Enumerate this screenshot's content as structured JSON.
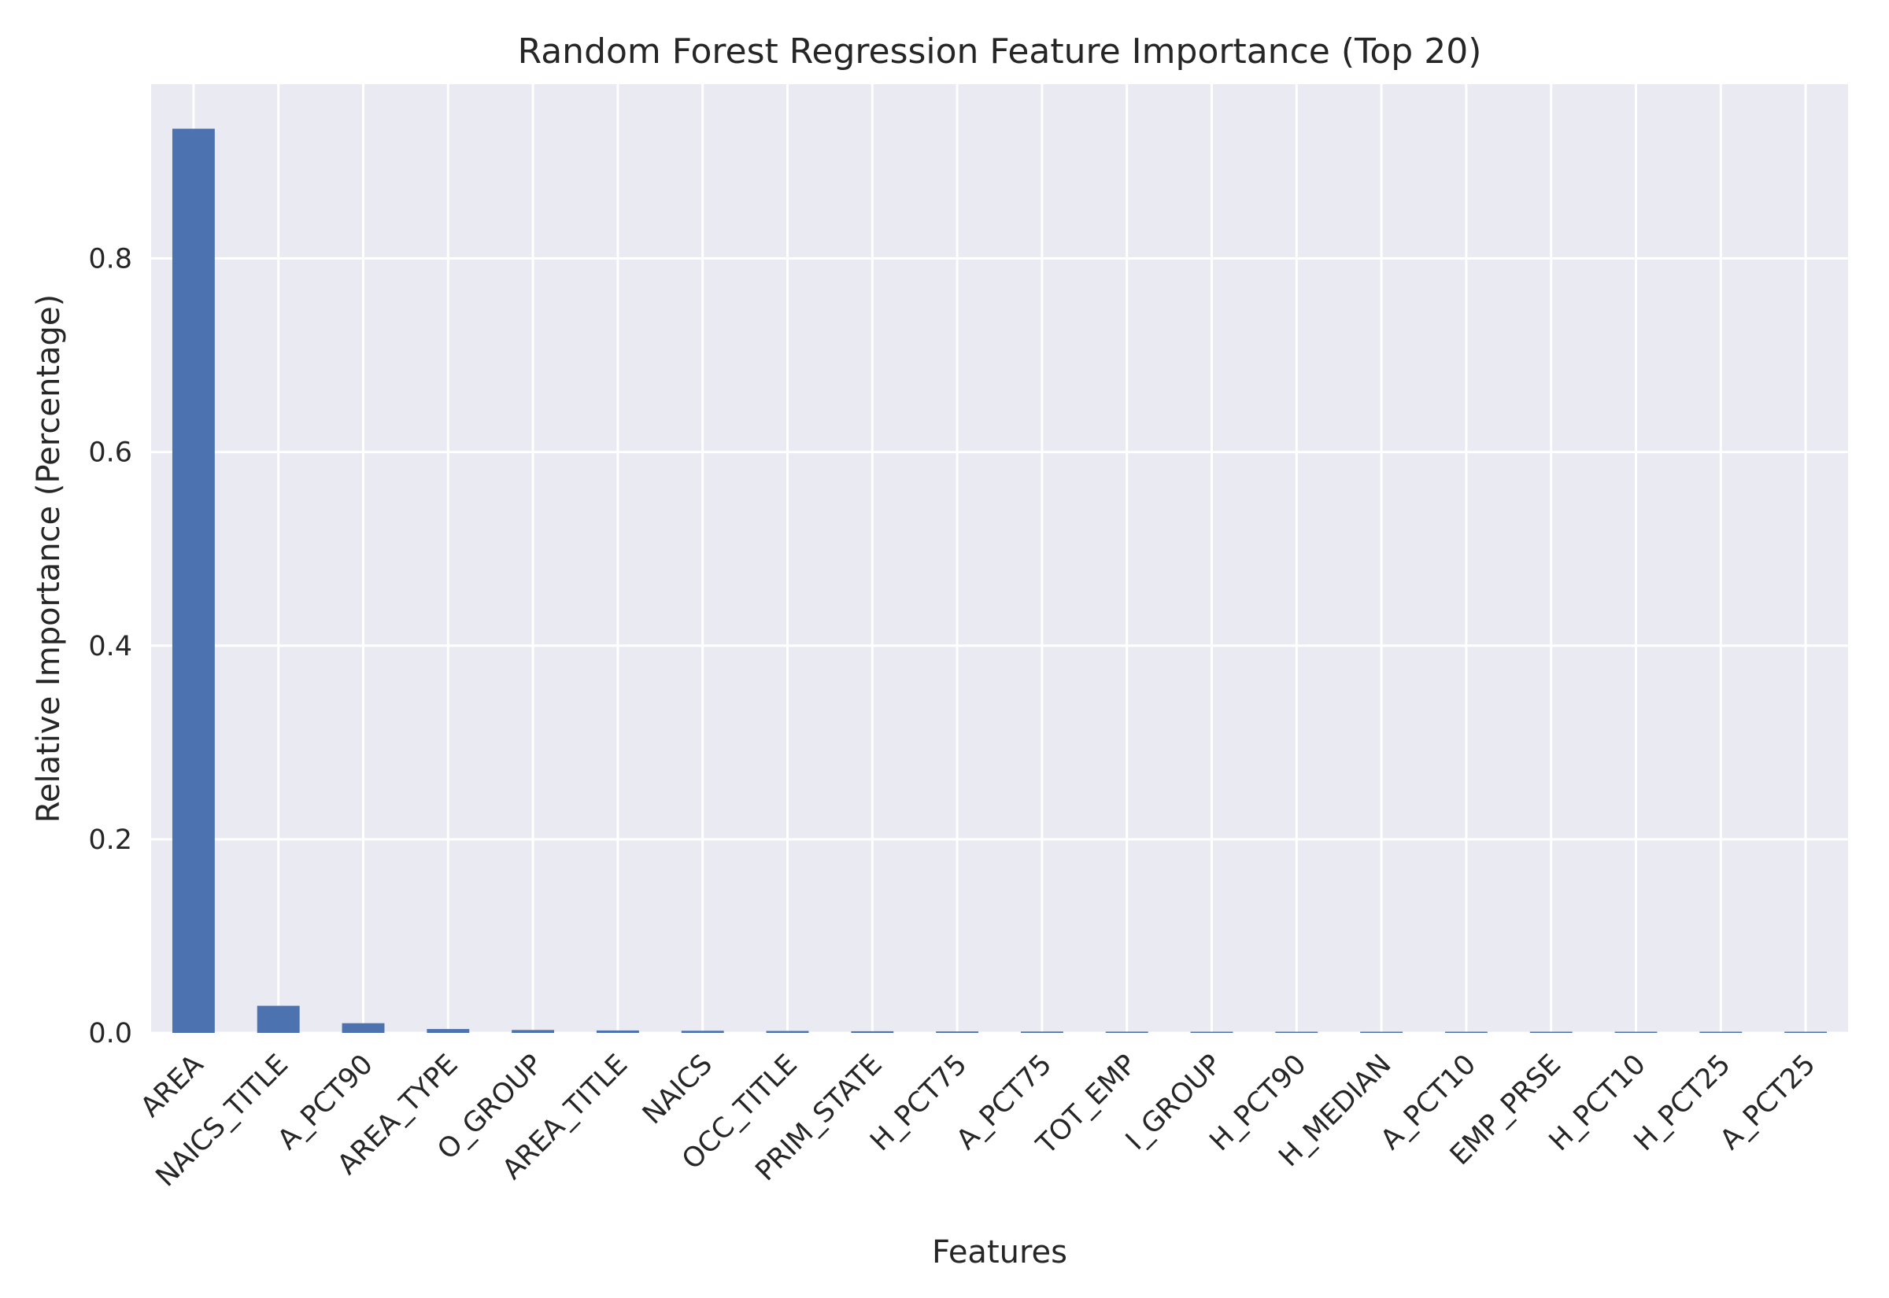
{
  "chart_data": {
    "type": "bar",
    "title": "Random Forest Regression Feature Importance (Top 20)",
    "xlabel": "Features",
    "ylabel": "Relative Importance (Percentage)",
    "categories": [
      "AREA",
      "NAICS_TITLE",
      "A_PCT90",
      "AREA_TYPE",
      "O_GROUP",
      "AREA_TITLE",
      "NAICS",
      "OCC_TITLE",
      "PRIM_STATE",
      "H_PCT75",
      "A_PCT75",
      "TOT_EMP",
      "I_GROUP",
      "H_PCT90",
      "H_MEDIAN",
      "A_PCT10",
      "EMP_PRSE",
      "H_PCT10",
      "H_PCT25",
      "A_PCT25"
    ],
    "values": [
      0.934,
      0.028,
      0.01,
      0.004,
      0.003,
      0.0025,
      0.0022,
      0.002,
      0.0017,
      0.0015,
      0.0014,
      0.0013,
      0.0012,
      0.0009,
      0.0008,
      0.0008,
      0.0007,
      0.0007,
      0.0006,
      0.0006
    ],
    "ylim": [
      0,
      0.98
    ],
    "yticks": [
      0.0,
      0.2,
      0.4,
      0.6,
      0.8
    ],
    "ytick_labels": [
      "0.0",
      "0.2",
      "0.4",
      "0.6",
      "0.8"
    ],
    "grid": true,
    "colors": {
      "bar": "#4C72B0",
      "plot_background": "#EAEAF2",
      "grid": "#FFFFFF"
    }
  }
}
